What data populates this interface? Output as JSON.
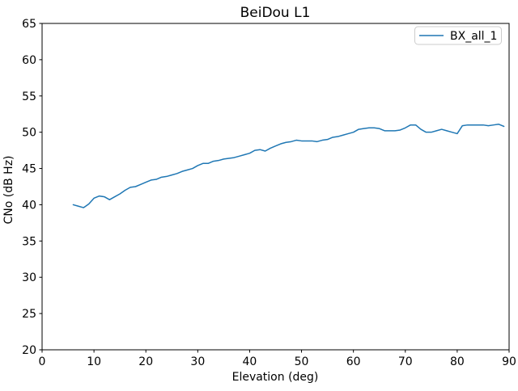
{
  "chart_data": {
    "type": "line",
    "title": "BeiDou L1",
    "xlabel": "Elevation (deg)",
    "ylabel": "CNo (dB Hz)",
    "xlim": [
      0,
      90
    ],
    "ylim": [
      20,
      65
    ],
    "xticks": [
      0,
      10,
      20,
      30,
      40,
      50,
      60,
      70,
      80,
      90
    ],
    "yticks": [
      20,
      25,
      30,
      35,
      40,
      45,
      50,
      55,
      60,
      65
    ],
    "grid": false,
    "legend": {
      "position": "upper right",
      "entries": [
        "BX_all_1"
      ]
    },
    "series": [
      {
        "name": "BX_all_1",
        "color": "#1f77b4",
        "x": [
          6,
          7,
          8,
          9,
          10,
          11,
          12,
          13,
          14,
          15,
          16,
          17,
          18,
          19,
          20,
          21,
          22,
          23,
          24,
          25,
          26,
          27,
          28,
          29,
          30,
          31,
          32,
          33,
          34,
          35,
          36,
          37,
          38,
          39,
          40,
          41,
          42,
          43,
          44,
          45,
          46,
          47,
          48,
          49,
          50,
          51,
          52,
          53,
          54,
          55,
          56,
          57,
          58,
          59,
          60,
          61,
          62,
          63,
          64,
          65,
          66,
          67,
          68,
          69,
          70,
          71,
          72,
          73,
          74,
          75,
          76,
          77,
          78,
          79,
          80,
          81,
          82,
          83,
          84,
          85,
          86,
          87,
          88,
          89
        ],
        "values": [
          40.0,
          39.8,
          39.6,
          40.1,
          40.9,
          41.2,
          41.1,
          40.7,
          41.1,
          41.5,
          42.0,
          42.4,
          42.5,
          42.8,
          43.1,
          43.4,
          43.5,
          43.8,
          43.9,
          44.1,
          44.3,
          44.6,
          44.8,
          45.0,
          45.4,
          45.7,
          45.7,
          46.0,
          46.1,
          46.3,
          46.4,
          46.5,
          46.7,
          46.9,
          47.1,
          47.5,
          47.6,
          47.4,
          47.8,
          48.1,
          48.4,
          48.6,
          48.7,
          48.9,
          48.8,
          48.8,
          48.8,
          48.7,
          48.9,
          49.0,
          49.3,
          49.4,
          49.6,
          49.8,
          50.0,
          50.4,
          50.5,
          50.6,
          50.6,
          50.5,
          50.2,
          50.2,
          50.2,
          50.3,
          50.6,
          51.0,
          51.0,
          50.4,
          50.0,
          50.0,
          50.2,
          50.4,
          50.2,
          50.0,
          49.8,
          50.9,
          51.0,
          51.0,
          51.0,
          51.0,
          50.9,
          51.0,
          51.1,
          50.8
        ]
      }
    ],
    "colors": {
      "line": "#1f77b4",
      "axes": "#000000",
      "legend_border": "#cccccc",
      "background": "#ffffff"
    }
  }
}
